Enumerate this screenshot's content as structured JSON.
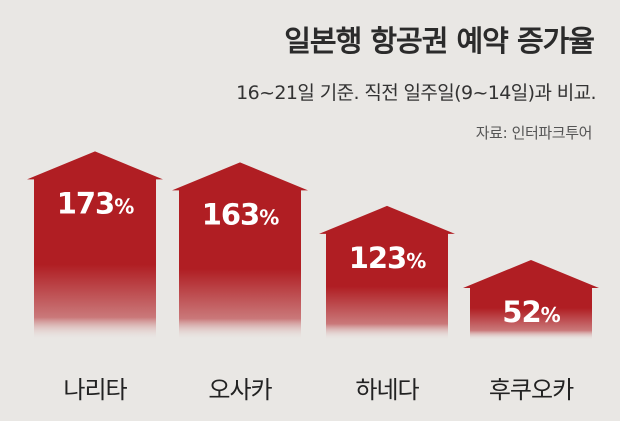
{
  "title": "일본행 항공권 예약 증가율",
  "subtitle": "16~21일 기준. 직전 일주일(9~14일)과 비교.",
  "source": "자료: 인터파크투어",
  "colors": {
    "arrow_top": "#b01e23",
    "arrow_bottom_fade": "#e9e7e4",
    "value_text": "#ffffff",
    "background": "#e9e7e4"
  },
  "chart_data": {
    "type": "bar",
    "title": "일본행 항공권 예약 증가율",
    "subtitle": "16~21일 기준. 직전 일주일(9~14일)과 비교.",
    "categories": [
      "나리타",
      "오사카",
      "하네다",
      "후쿠오카"
    ],
    "values": [
      173,
      163,
      123,
      52
    ],
    "value_labels": [
      "173",
      "163",
      "123",
      "52"
    ],
    "unit": "%",
    "xlabel": "",
    "ylabel": "",
    "grid": false,
    "legend": "none",
    "mark": "arrow"
  }
}
